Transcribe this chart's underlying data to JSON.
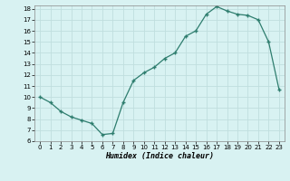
{
  "x": [
    0,
    1,
    2,
    3,
    4,
    5,
    6,
    7,
    8,
    9,
    10,
    11,
    12,
    13,
    14,
    15,
    16,
    17,
    18,
    19,
    20,
    21,
    22,
    23
  ],
  "y": [
    10.0,
    9.5,
    8.7,
    8.2,
    7.9,
    7.6,
    6.6,
    6.7,
    9.5,
    11.5,
    12.2,
    12.7,
    13.5,
    14.0,
    15.5,
    16.0,
    17.5,
    18.2,
    17.8,
    17.5,
    17.4,
    17.0,
    15.0,
    10.7
  ],
  "xlabel": "Humidex (Indice chaleur)",
  "line_color": "#2e7d6e",
  "marker": "+",
  "markersize": 3.0,
  "markeredgewidth": 1.0,
  "linewidth": 0.9,
  "bg_color": "#d8f2f2",
  "grid_color": "#c0dede",
  "ylim": [
    6,
    18
  ],
  "xlim": [
    -0.5,
    23.5
  ],
  "yticks": [
    6,
    7,
    8,
    9,
    10,
    11,
    12,
    13,
    14,
    15,
    16,
    17,
    18
  ],
  "xticks": [
    0,
    1,
    2,
    3,
    4,
    5,
    6,
    7,
    8,
    9,
    10,
    11,
    12,
    13,
    14,
    15,
    16,
    17,
    18,
    19,
    20,
    21,
    22,
    23
  ],
  "tick_fontsize": 5,
  "xlabel_fontsize": 6
}
